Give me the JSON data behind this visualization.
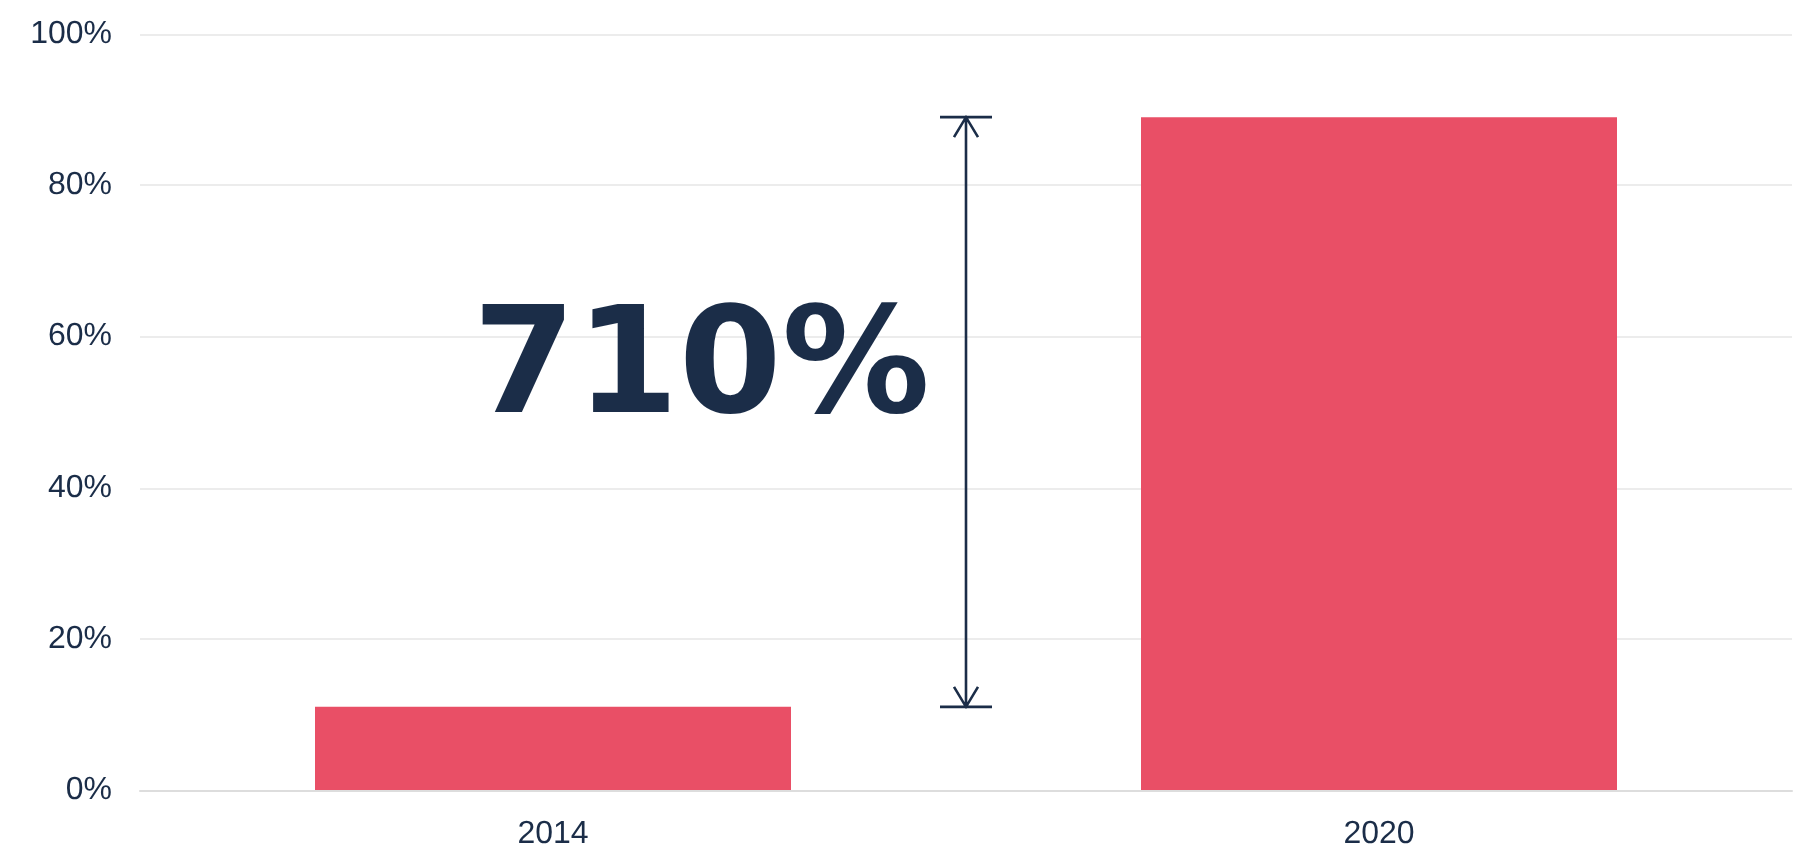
{
  "chart_data": {
    "type": "bar",
    "categories": [
      "2014",
      "2020"
    ],
    "values": [
      11,
      89
    ],
    "color": "#e94f66",
    "ylim": [
      0,
      100
    ],
    "yticks": [
      {
        "value": 0,
        "label": "0%"
      },
      {
        "value": 20,
        "label": "20%"
      },
      {
        "value": 40,
        "label": "40%"
      },
      {
        "value": 60,
        "label": "60%"
      },
      {
        "value": 80,
        "label": "80%"
      },
      {
        "value": 100,
        "label": "100%"
      }
    ],
    "grid": "y",
    "annotations": [
      "710%"
    ]
  }
}
